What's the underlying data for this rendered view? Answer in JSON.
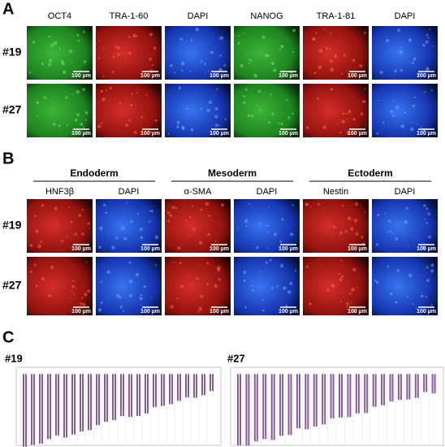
{
  "panel_a": {
    "label": "A",
    "columns": [
      "OCT4",
      "TRA-1-60",
      "DAPI",
      "NANOG",
      "TRA-1-81",
      "DAPI"
    ],
    "rows": [
      "#19",
      "#27"
    ],
    "scale_bar": "100 µm"
  },
  "panel_b": {
    "label": "B",
    "groups": [
      "Endoderm",
      "Mesoderm",
      "Ectoderm"
    ],
    "columns": [
      "HNF3β",
      "DAPI",
      "α-SMA",
      "DAPI",
      "Nestin",
      "DAPI"
    ],
    "rows": [
      "#19",
      "#27"
    ],
    "scale_bar": "100 µm"
  },
  "panel_c": {
    "label": "C",
    "karyotypes": [
      "#19",
      "#27"
    ]
  }
}
